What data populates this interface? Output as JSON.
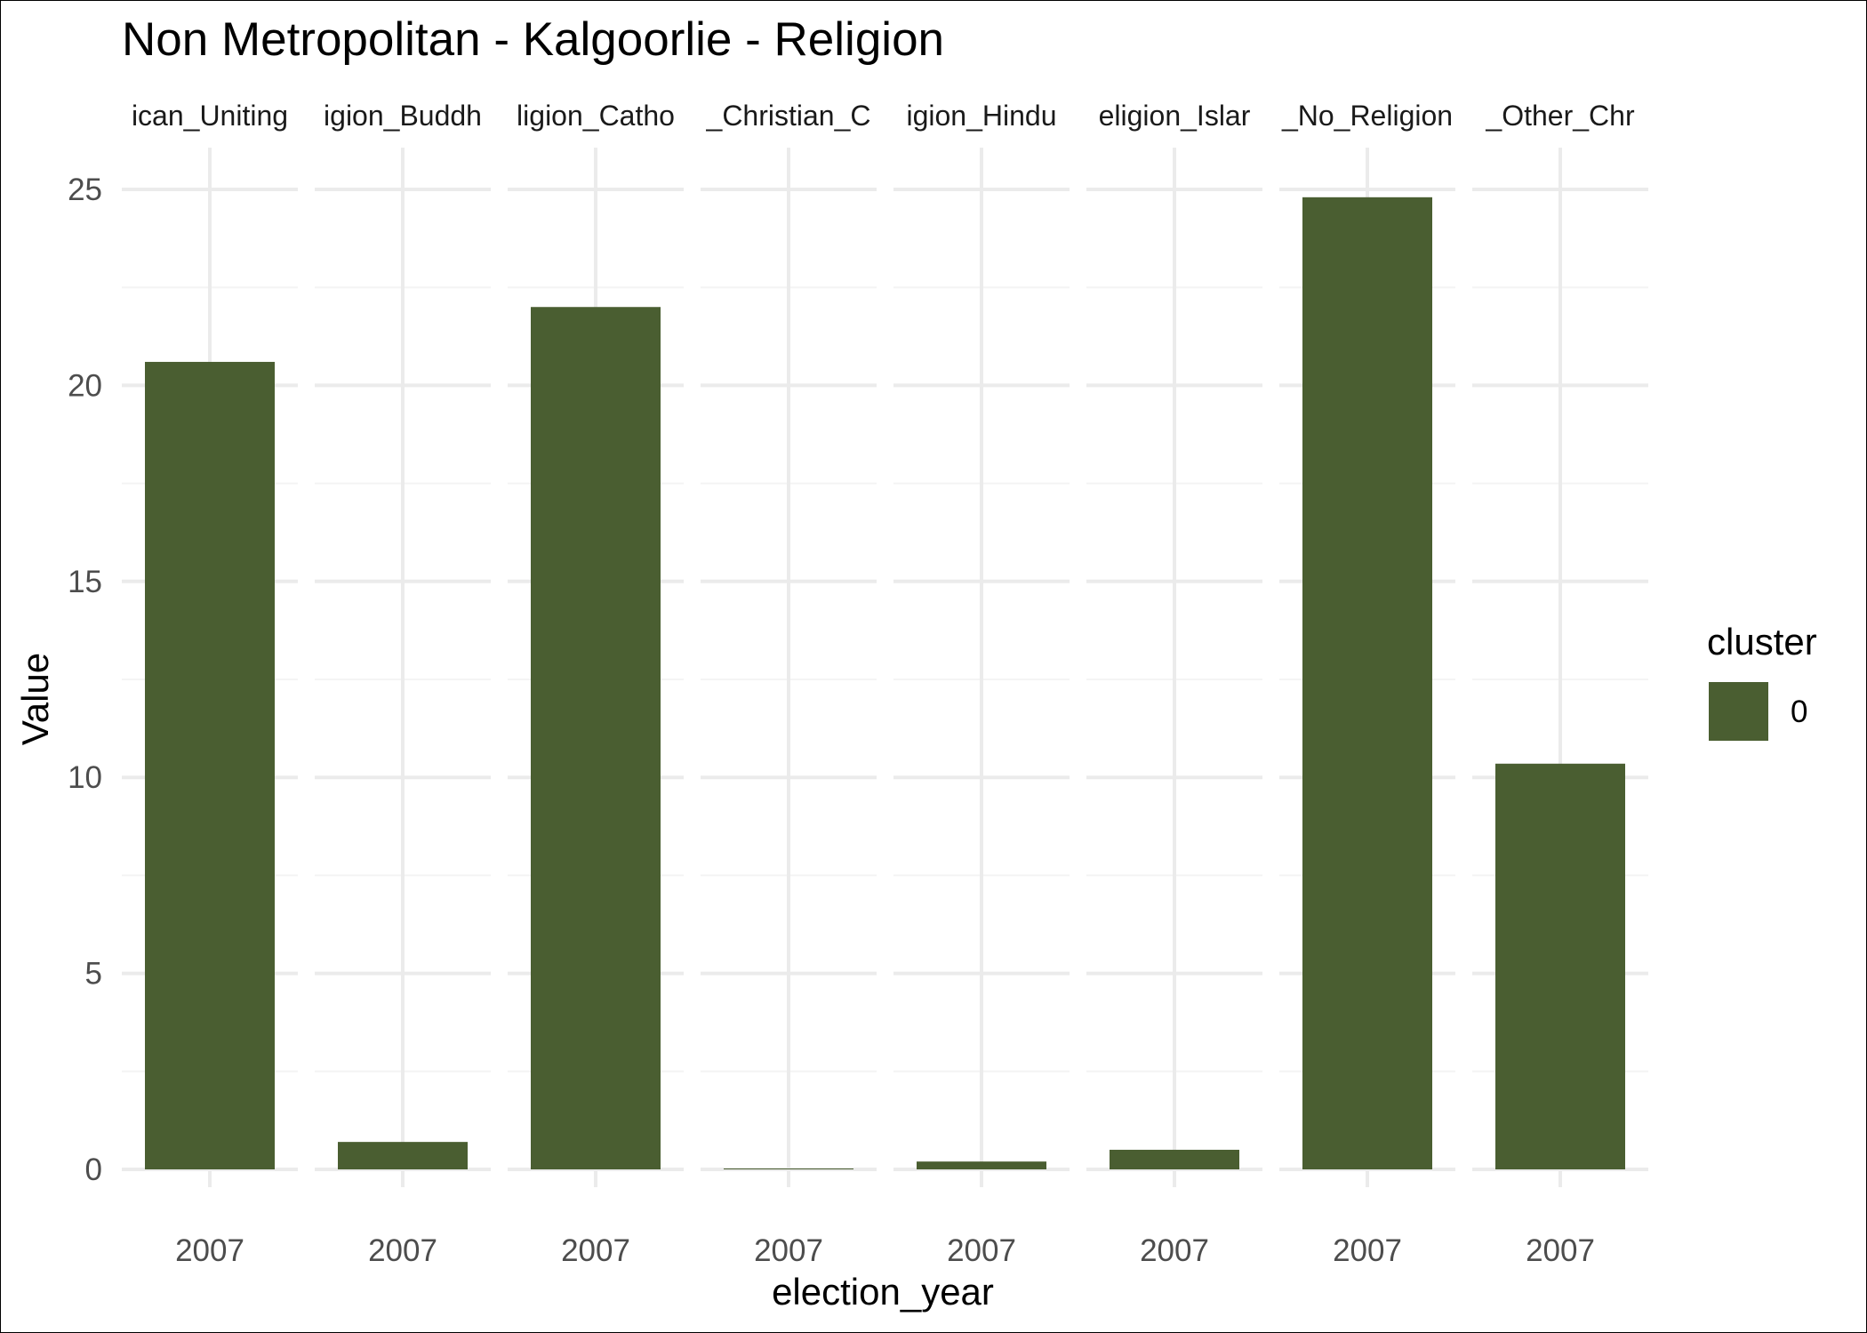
{
  "chart_data": {
    "type": "bar",
    "title": "Non Metropolitan - Kalgoorlie - Religion",
    "xlabel": "election_year",
    "ylabel": "Value",
    "ylim": [
      0,
      26
    ],
    "y_ticks": [
      0,
      5,
      10,
      15,
      20,
      25
    ],
    "grid": true,
    "legend": {
      "title": "cluster",
      "position": "right",
      "entries": [
        "0"
      ]
    },
    "facets": [
      {
        "strip_label": "ican_Uniting",
        "x": "2007",
        "value": 20.6,
        "cluster": "0"
      },
      {
        "strip_label": "igion_Buddh",
        "x": "2007",
        "value": 0.7,
        "cluster": "0"
      },
      {
        "strip_label": "ligion_Catho",
        "x": "2007",
        "value": 22.0,
        "cluster": "0"
      },
      {
        "strip_label": "_Christian_C",
        "x": "2007",
        "value": 0.02,
        "cluster": "0"
      },
      {
        "strip_label": "igion_Hindu",
        "x": "2007",
        "value": 0.2,
        "cluster": "0"
      },
      {
        "strip_label": "eligion_Islar",
        "x": "2007",
        "value": 0.5,
        "cluster": "0"
      },
      {
        "strip_label": "_No_Religion",
        "x": "2007",
        "value": 24.8,
        "cluster": "0"
      },
      {
        "strip_label": "_Other_Chr",
        "x": "2007",
        "value": 10.35,
        "cluster": "0"
      }
    ],
    "colors": {
      "cluster_0": "#4a5e31",
      "grid_major": "#ebebeb",
      "grid_minor": "#f4f4f4"
    }
  }
}
